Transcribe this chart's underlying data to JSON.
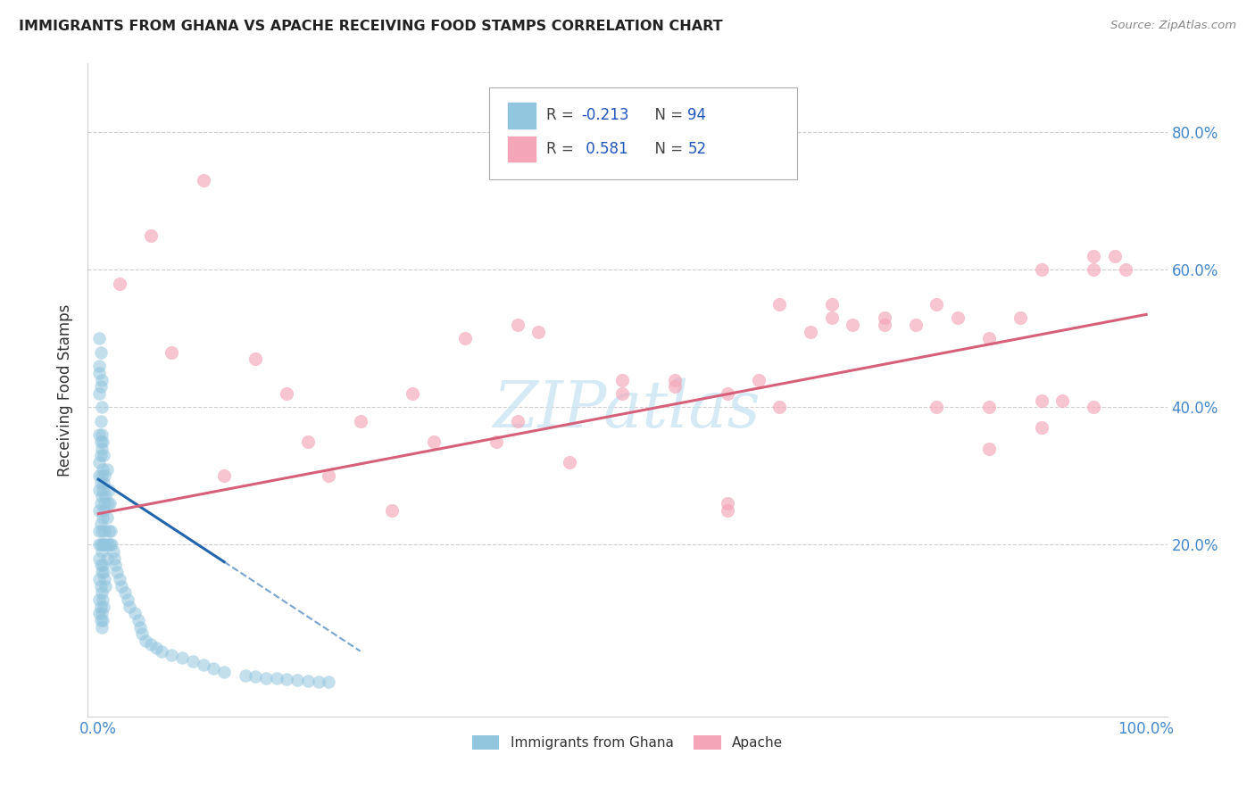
{
  "title": "IMMIGRANTS FROM GHANA VS APACHE RECEIVING FOOD STAMPS CORRELATION CHART",
  "source": "Source: ZipAtlas.com",
  "ylabel": "Receiving Food Stamps",
  "legend_label1": "Immigrants from Ghana",
  "legend_label2": "Apache",
  "R1": -0.213,
  "N1": 94,
  "R2": 0.581,
  "N2": 52,
  "color_blue": "#92c5de",
  "color_pink": "#f4a6b8",
  "color_line_blue": "#2166ac",
  "color_line_pink": "#d6607a",
  "watermark": "ZIPatlas",
  "ytick_values": [
    0.2,
    0.4,
    0.6,
    0.8
  ],
  "blue_x": [
    0.001,
    0.001,
    0.001,
    0.001,
    0.001,
    0.001,
    0.001,
    0.001,
    0.001,
    0.001,
    0.002,
    0.002,
    0.002,
    0.002,
    0.002,
    0.002,
    0.002,
    0.002,
    0.002,
    0.002,
    0.003,
    0.003,
    0.003,
    0.003,
    0.003,
    0.003,
    0.003,
    0.003,
    0.003,
    0.003,
    0.004,
    0.004,
    0.004,
    0.004,
    0.004,
    0.004,
    0.004,
    0.004,
    0.005,
    0.005,
    0.005,
    0.005,
    0.005,
    0.005,
    0.006,
    0.006,
    0.006,
    0.006,
    0.007,
    0.007,
    0.007,
    0.008,
    0.008,
    0.008,
    0.009,
    0.009,
    0.01,
    0.01,
    0.011,
    0.011,
    0.012,
    0.013,
    0.014,
    0.015,
    0.016,
    0.018,
    0.02,
    0.022,
    0.025,
    0.028,
    0.03,
    0.035,
    0.038,
    0.04,
    0.042,
    0.045,
    0.05,
    0.055,
    0.06,
    0.07,
    0.08,
    0.09,
    0.1,
    0.11,
    0.12,
    0.14,
    0.15,
    0.16,
    0.17,
    0.18,
    0.19,
    0.2,
    0.21,
    0.22
  ],
  "blue_y": [
    0.2,
    0.22,
    0.18,
    0.25,
    0.15,
    0.28,
    0.12,
    0.3,
    0.1,
    0.32,
    0.2,
    0.23,
    0.17,
    0.26,
    0.14,
    0.29,
    0.11,
    0.33,
    0.09,
    0.35,
    0.19,
    0.22,
    0.16,
    0.27,
    0.13,
    0.3,
    0.1,
    0.34,
    0.08,
    0.36,
    0.2,
    0.24,
    0.17,
    0.28,
    0.12,
    0.31,
    0.09,
    0.35,
    0.2,
    0.25,
    0.16,
    0.29,
    0.11,
    0.33,
    0.22,
    0.26,
    0.15,
    0.3,
    0.2,
    0.27,
    0.14,
    0.24,
    0.18,
    0.31,
    0.2,
    0.26,
    0.22,
    0.28,
    0.2,
    0.26,
    0.22,
    0.2,
    0.19,
    0.18,
    0.17,
    0.16,
    0.15,
    0.14,
    0.13,
    0.12,
    0.11,
    0.1,
    0.09,
    0.08,
    0.07,
    0.06,
    0.055,
    0.05,
    0.045,
    0.04,
    0.035,
    0.03,
    0.025,
    0.02,
    0.015,
    0.01,
    0.008,
    0.006,
    0.005,
    0.004,
    0.003,
    0.002,
    0.001,
    0.0
  ],
  "blue_y_high": [
    0.45,
    0.43,
    0.42,
    0.4,
    0.38,
    0.36,
    0.5,
    0.48,
    0.46,
    0.44
  ],
  "blue_x_high": [
    0.001,
    0.002,
    0.001,
    0.003,
    0.002,
    0.001,
    0.001,
    0.002,
    0.001,
    0.003
  ],
  "pink_x": [
    0.02,
    0.05,
    0.07,
    0.1,
    0.12,
    0.15,
    0.18,
    0.2,
    0.22,
    0.25,
    0.28,
    0.3,
    0.32,
    0.35,
    0.38,
    0.4,
    0.45,
    0.5,
    0.55,
    0.6,
    0.63,
    0.65,
    0.68,
    0.7,
    0.72,
    0.75,
    0.78,
    0.8,
    0.82,
    0.85,
    0.88,
    0.9,
    0.92,
    0.95,
    0.98,
    0.4,
    0.42,
    0.55,
    0.6,
    0.65,
    0.7,
    0.75,
    0.8,
    0.85,
    0.9,
    0.95,
    0.97,
    0.85,
    0.9,
    0.95,
    0.5,
    0.6
  ],
  "pink_y": [
    0.58,
    0.65,
    0.48,
    0.73,
    0.3,
    0.47,
    0.42,
    0.35,
    0.3,
    0.38,
    0.25,
    0.42,
    0.35,
    0.5,
    0.35,
    0.38,
    0.32,
    0.44,
    0.43,
    0.26,
    0.44,
    0.55,
    0.51,
    0.55,
    0.52,
    0.53,
    0.52,
    0.55,
    0.53,
    0.5,
    0.53,
    0.6,
    0.41,
    0.62,
    0.6,
    0.52,
    0.51,
    0.44,
    0.42,
    0.4,
    0.53,
    0.52,
    0.4,
    0.4,
    0.41,
    0.4,
    0.62,
    0.34,
    0.37,
    0.6,
    0.42,
    0.25
  ]
}
